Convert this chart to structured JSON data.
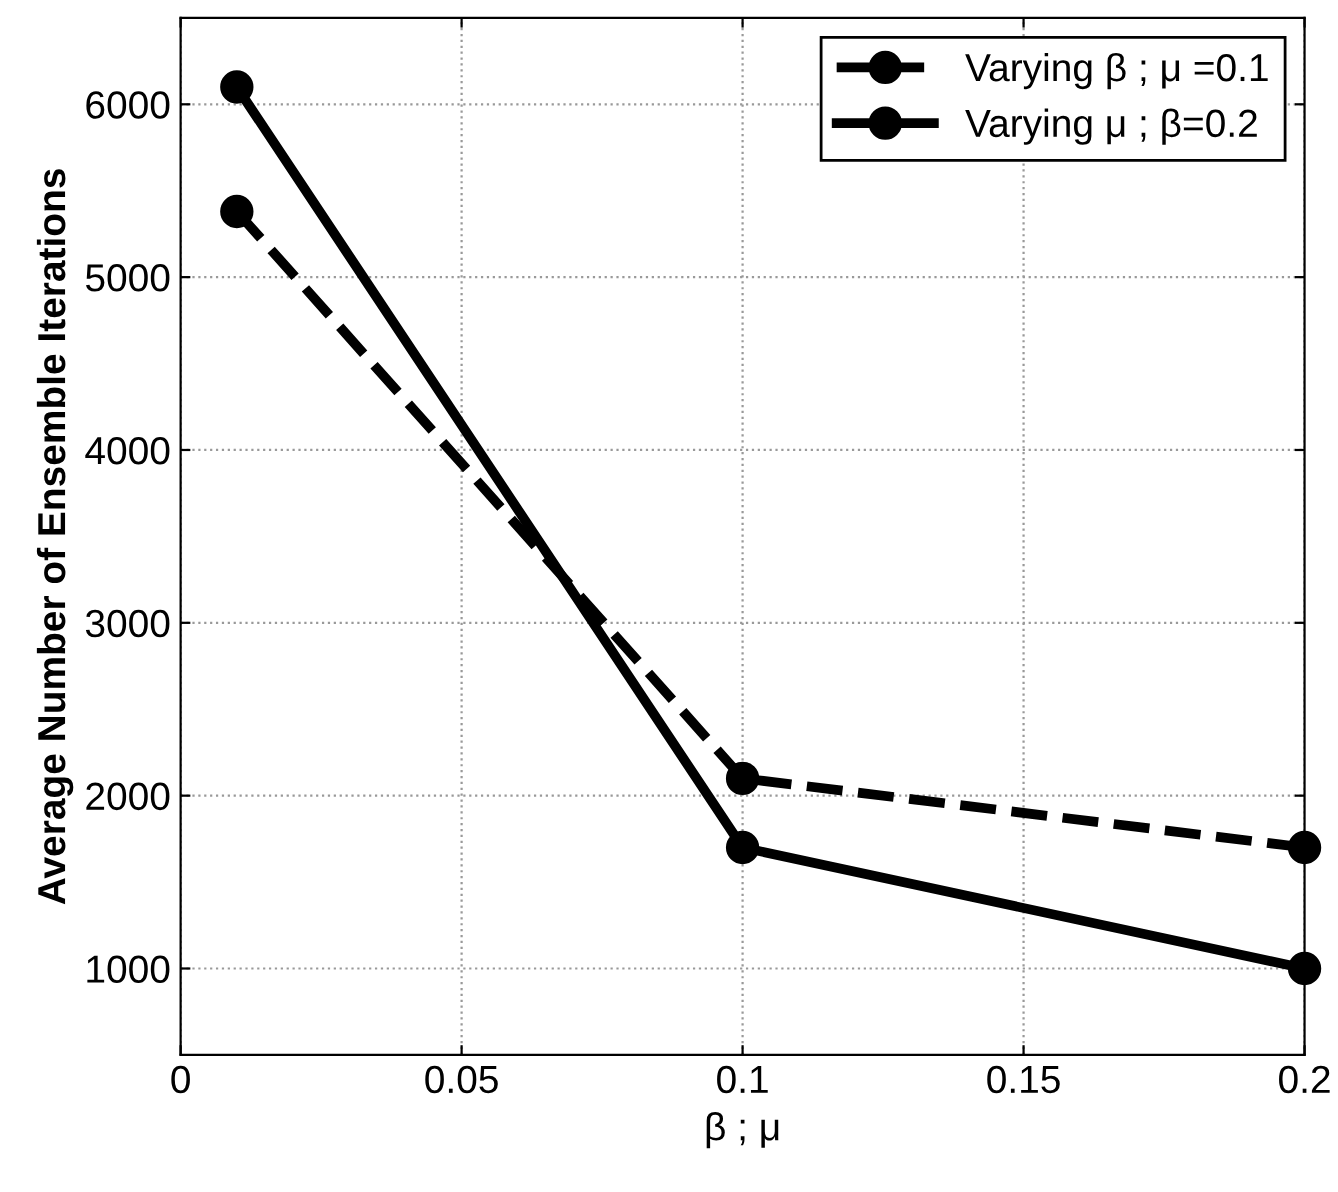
{
  "chart_data": {
    "type": "line",
    "xlabel": "β ; μ",
    "ylabel": "Average Number of Ensemble Iterations",
    "x": [
      0.01,
      0.1,
      0.2
    ],
    "series": [
      {
        "name": "Varying β ; μ =0.1",
        "color": "#000000",
        "line_style": "dashed",
        "values": [
          5380,
          2100,
          1700
        ]
      },
      {
        "name": "Varying μ ; β=0.2",
        "color": "#000000",
        "line_style": "solid",
        "values": [
          6100,
          1700,
          1000
        ]
      }
    ],
    "xlim": [
      0,
      0.2
    ],
    "xticks": [
      0,
      0.05,
      0.1,
      0.15,
      0.2
    ],
    "ylim": [
      500,
      6500
    ],
    "yticks": [
      1000,
      2000,
      3000,
      4000,
      5000,
      6000
    ],
    "grid": true,
    "legend": "top right",
    "marker": "circle"
  }
}
